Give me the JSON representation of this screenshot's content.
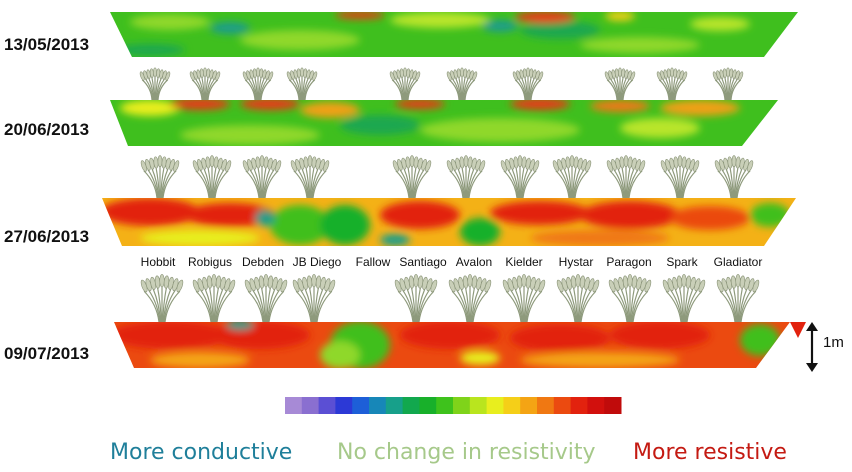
{
  "dates": [
    "13/05/2013",
    "20/06/2013",
    "27/06/2013",
    "09/07/2013"
  ],
  "varieties": [
    "Hobbit",
    "Robigus",
    "Debden",
    "JB Diego",
    "Fallow",
    "Santiago",
    "Avalon",
    "Kielder",
    "Hystar",
    "Paragon",
    "Spark",
    "Gladiator"
  ],
  "scale": {
    "label": "1m"
  },
  "legend": {
    "conductive": "More conductive",
    "neutral": "No change in resistivity",
    "resistive": "More resistive"
  },
  "colors": {
    "conductive": "#1f7f9a",
    "neutral": "#a6c98a",
    "resistive": "#c41a12",
    "colorbar": [
      "#a78ad6",
      "#8a6fd0",
      "#5b4fd4",
      "#2c39d6",
      "#1d5fd8",
      "#1787b8",
      "#17a08a",
      "#12a84e",
      "#18b02a",
      "#3ec21c",
      "#7fd31a",
      "#b9e51e",
      "#e8ee1e",
      "#f5cf18",
      "#f4a414",
      "#f07812",
      "#eb4a10",
      "#e2220e",
      "#d2100d",
      "#c00b0b"
    ]
  },
  "icons": [
    "wheat-plant-icon",
    "double-arrow-icon"
  ]
}
